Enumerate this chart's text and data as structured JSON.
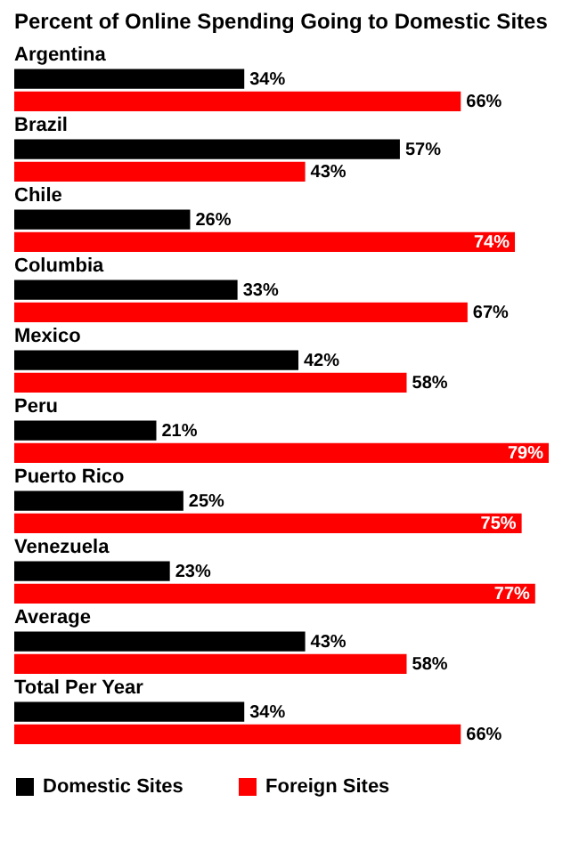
{
  "chart_data": {
    "type": "bar",
    "orientation": "horizontal",
    "title": "Percent of Online Spending Going to Domestic Sites",
    "categories": [
      "Argentina",
      "Brazil",
      "Chile",
      "Columbia",
      "Mexico",
      "Peru",
      "Puerto Rico",
      "Venezuela",
      "Average",
      "Total Per Year"
    ],
    "series": [
      {
        "name": "Domestic Sites",
        "color": "#000000",
        "values": [
          34,
          57,
          26,
          33,
          42,
          21,
          25,
          23,
          43,
          34
        ],
        "value_labels": [
          "34%",
          "57%",
          "26%",
          "33%",
          "42%",
          "21%",
          "25%",
          "23%",
          "43%",
          "34%"
        ]
      },
      {
        "name": "Foreign Sites",
        "color": "#ff0000",
        "values": [
          66,
          43,
          74,
          67,
          58,
          79,
          75,
          77,
          58,
          66
        ],
        "value_labels": [
          "66%",
          "43%",
          "74%",
          "67%",
          "58%",
          "79%",
          "75%",
          "77%",
          "58%",
          "66%"
        ]
      }
    ],
    "legend": "bottom"
  }
}
